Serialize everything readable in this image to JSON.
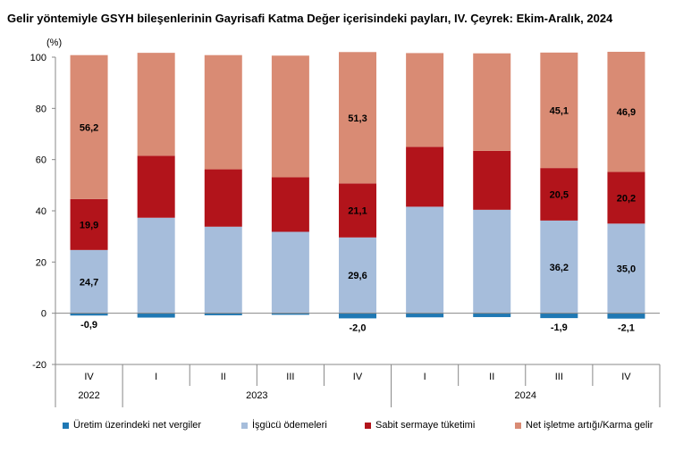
{
  "title": "Gelir yöntemiyle GSYH bileşenlerinin Gayrisafi Katma Değer içerisindeki payları, IV. Çeyrek: Ekim-Aralık, 2024",
  "chart_data": {
    "type": "bar",
    "stacked": true,
    "title": "Gelir yöntemiyle GSYH bileşenlerinin Gayrisafi Katma Değer içerisindeki payları, IV. Çeyrek: Ekim-Aralık, 2024",
    "ylabel": "(%)",
    "xlabel": "",
    "ylim": [
      -20,
      100
    ],
    "yticks": [
      -20,
      0,
      20,
      40,
      60,
      80,
      100
    ],
    "grid": false,
    "legend_position": "bottom",
    "categories": [
      "IV",
      "I",
      "II",
      "III",
      "IV",
      "I",
      "II",
      "III",
      "IV"
    ],
    "year_groups": [
      {
        "label": "2022",
        "count": 1
      },
      {
        "label": "2023",
        "count": 4
      },
      {
        "label": "2024",
        "count": 4
      }
    ],
    "series": [
      {
        "name": "Üretim üzerindeki net vergiler",
        "color": "#1f78b4",
        "values": [
          -0.9,
          -1.7,
          -0.8,
          -0.6,
          -2.0,
          -1.6,
          -1.5,
          -1.9,
          -2.1
        ],
        "labels": [
          "-0,9",
          "",
          "",
          "",
          "-2,0",
          "",
          "",
          "-1,9",
          "-2,1"
        ]
      },
      {
        "name": "İşgücü ödemeleri",
        "color": "#a6bddb",
        "values": [
          24.7,
          37.3,
          33.8,
          31.8,
          29.6,
          41.6,
          40.4,
          36.2,
          35.0
        ],
        "labels": [
          "24,7",
          "",
          "",
          "",
          "29,6",
          "",
          "",
          "36,2",
          "35,0"
        ]
      },
      {
        "name": "Sabit sermaye tüketimi",
        "color": "#b2141b",
        "values": [
          19.9,
          24.2,
          22.4,
          21.3,
          21.1,
          23.4,
          23.0,
          20.5,
          20.2
        ],
        "labels": [
          "19,9",
          "",
          "",
          "",
          "21,1",
          "",
          "",
          "20,5",
          "20,2"
        ]
      },
      {
        "name": "Net işletme artığı/Karma gelir",
        "color": "#d98b74",
        "values": [
          56.2,
          40.2,
          44.6,
          47.5,
          51.3,
          36.6,
          38.1,
          45.1,
          46.9
        ],
        "labels": [
          "56,2",
          "",
          "",
          "",
          "51,3",
          "",
          "",
          "45,1",
          "46,9"
        ]
      }
    ]
  }
}
